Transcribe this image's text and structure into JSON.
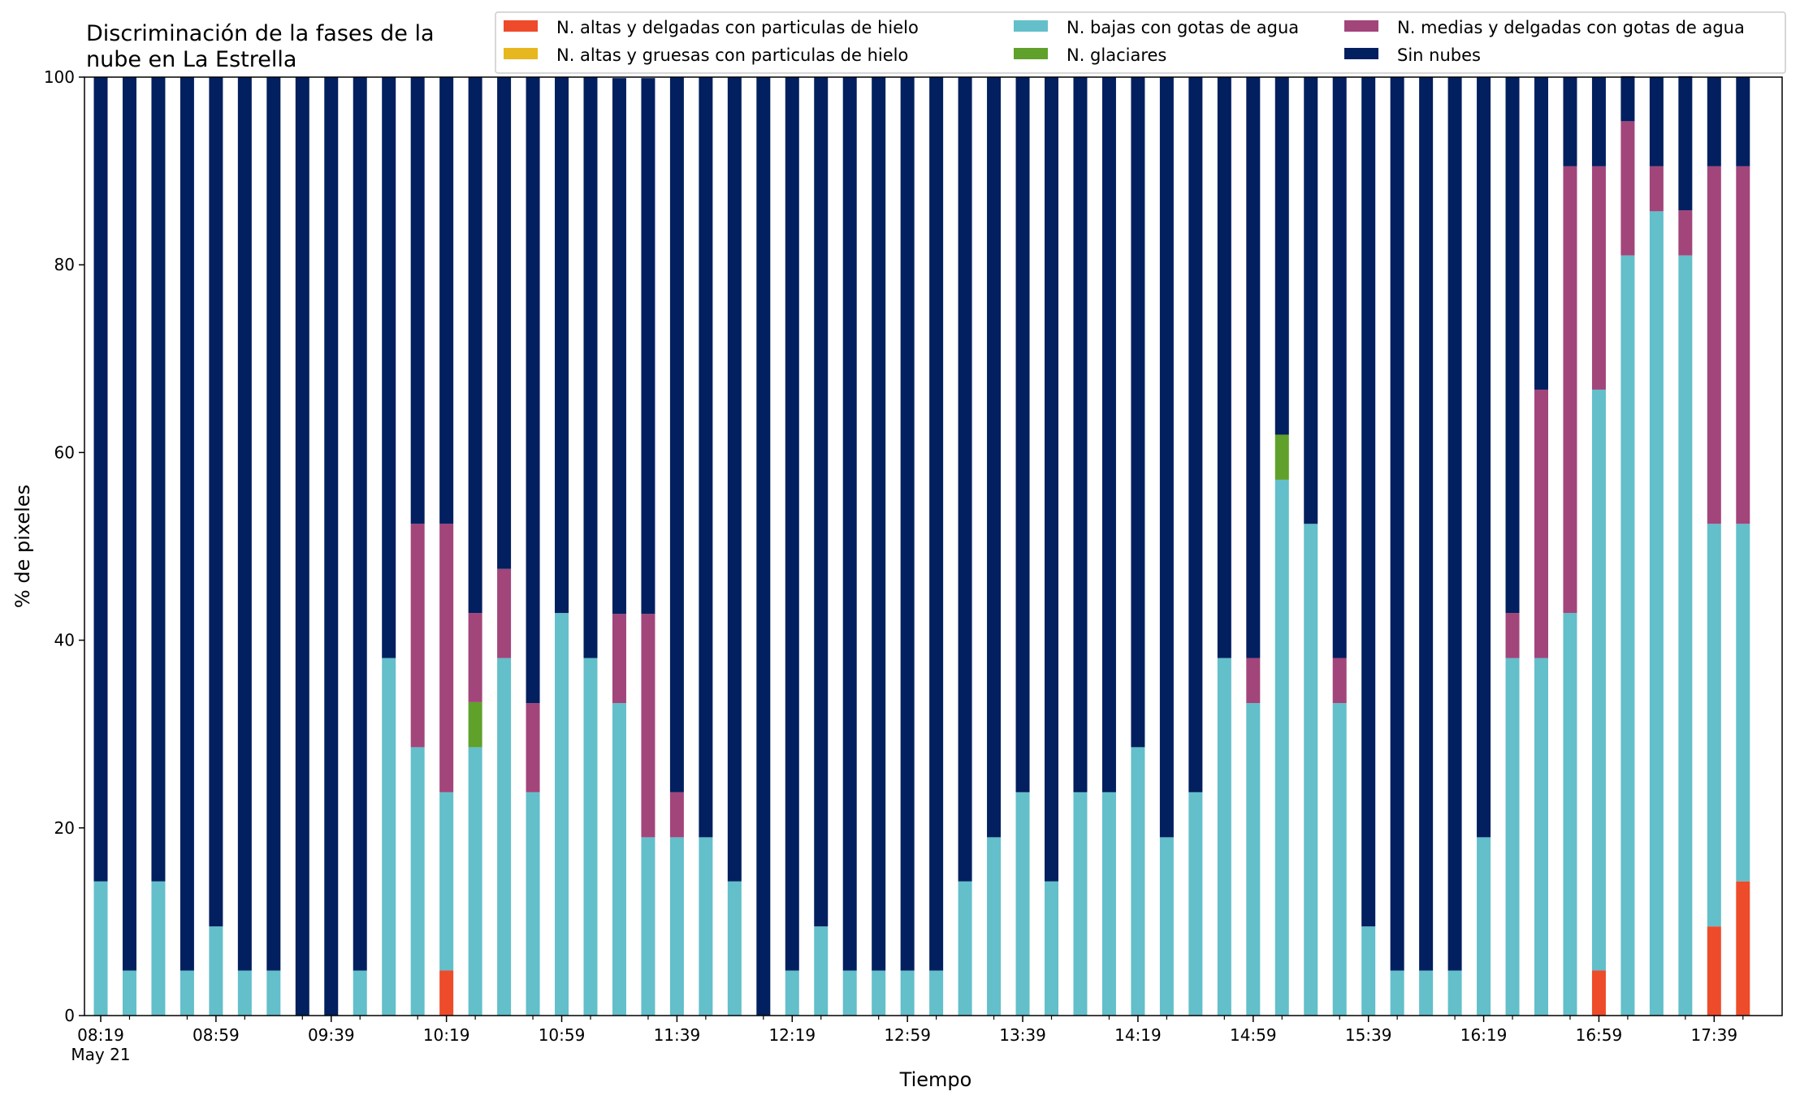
{
  "chart_data": {
    "type": "bar",
    "stacked": true,
    "title_lines": [
      "Discriminación de la fases de la",
      "nube en La Estrella"
    ],
    "xlabel": "Tiempo",
    "ylabel": "% de pixeles",
    "ylim": [
      0,
      100
    ],
    "yticks": [
      0,
      20,
      40,
      60,
      80,
      100
    ],
    "grid": false,
    "legend_position": "top-right",
    "x_tick_labels": [
      {
        "index": 0,
        "label": "08:19",
        "sublabel": "May 21"
      },
      {
        "index": 4,
        "label": "08:59"
      },
      {
        "index": 8,
        "label": "09:39"
      },
      {
        "index": 12,
        "label": "10:19"
      },
      {
        "index": 16,
        "label": "10:59"
      },
      {
        "index": 20,
        "label": "11:39"
      },
      {
        "index": 24,
        "label": "12:19"
      },
      {
        "index": 28,
        "label": "12:59"
      },
      {
        "index": 32,
        "label": "13:39"
      },
      {
        "index": 36,
        "label": "14:19"
      },
      {
        "index": 40,
        "label": "14:59"
      },
      {
        "index": 44,
        "label": "15:39"
      },
      {
        "index": 48,
        "label": "16:19"
      },
      {
        "index": 52,
        "label": "16:59"
      },
      {
        "index": 56,
        "label": "17:39"
      }
    ],
    "series": [
      {
        "name": "N. altas y delgadas con particulas de hielo",
        "color": "#ee4b2b",
        "values": [
          0,
          0,
          0,
          0,
          0,
          0,
          0,
          0,
          0,
          0,
          0,
          0,
          4.8,
          0,
          0,
          0,
          0,
          0,
          0,
          0,
          0,
          0,
          0,
          0,
          0,
          0,
          0,
          0,
          0,
          0,
          0,
          0,
          0,
          0,
          0,
          0,
          0,
          0,
          0,
          0,
          0,
          0,
          0,
          0,
          0,
          0,
          0,
          0,
          0,
          0,
          0,
          0,
          4.8,
          0,
          0,
          0,
          9.5,
          14.3
        ]
      },
      {
        "name": "N. altas y gruesas con particulas de hielo",
        "color": "#e6b71e",
        "values": [
          0,
          0,
          0,
          0,
          0,
          0,
          0,
          0,
          0,
          0,
          0,
          0,
          0,
          0,
          0,
          0,
          0,
          0,
          0,
          0,
          0,
          0,
          0,
          0,
          0,
          0,
          0,
          0,
          0,
          0,
          0,
          0,
          0,
          0,
          0,
          0,
          0,
          0,
          0,
          0,
          0,
          0,
          0,
          0,
          0,
          0,
          0,
          0,
          0,
          0,
          0,
          0,
          0,
          0,
          0,
          0,
          0,
          0
        ]
      },
      {
        "name": "N. bajas con gotas de agua",
        "color": "#63bfca",
        "values": [
          14.3,
          4.8,
          14.3,
          4.8,
          9.5,
          4.8,
          4.8,
          0,
          0,
          4.8,
          38.1,
          28.6,
          19.0,
          28.6,
          38.1,
          23.8,
          42.9,
          38.1,
          33.3,
          19.0,
          19.0,
          19.0,
          14.3,
          0,
          4.8,
          9.5,
          4.8,
          4.8,
          4.8,
          4.8,
          14.3,
          19.0,
          23.8,
          14.3,
          23.8,
          23.8,
          28.6,
          19.0,
          23.8,
          38.1,
          33.3,
          57.1,
          52.4,
          33.3,
          9.5,
          4.8,
          4.8,
          4.8,
          19.0,
          38.1,
          38.1,
          42.9,
          61.9,
          81.0,
          85.7,
          81.0,
          42.9,
          38.1
        ]
      },
      {
        "name": "N. glaciares",
        "color": "#5fa12a",
        "values": [
          0,
          0,
          0,
          0,
          0,
          0,
          0,
          0,
          0,
          0,
          0,
          0,
          0,
          4.8,
          0,
          0,
          0,
          0,
          0,
          0,
          0,
          0,
          0,
          0,
          0,
          0,
          0,
          0,
          0,
          0,
          0,
          0,
          0,
          0,
          0,
          0,
          0,
          0,
          0,
          0,
          0,
          4.8,
          0,
          0,
          0,
          0,
          0,
          0,
          0,
          0,
          0,
          0,
          0,
          0,
          0,
          0,
          0,
          0
        ]
      },
      {
        "name": "N. medias y delgadas con gotas de agua",
        "color": "#a2457b",
        "values": [
          0,
          0,
          0,
          0,
          0,
          0,
          0,
          0,
          0,
          0,
          0,
          23.8,
          28.6,
          9.5,
          9.5,
          9.5,
          0,
          0,
          9.5,
          23.8,
          4.8,
          0,
          0,
          0,
          0,
          0,
          0,
          0,
          0,
          0,
          0,
          0,
          0,
          0,
          0,
          0,
          0,
          0,
          0,
          0,
          4.8,
          0,
          0,
          4.8,
          0,
          0,
          0,
          0,
          0,
          4.8,
          28.6,
          47.6,
          23.8,
          14.3,
          4.8,
          4.8,
          38.1,
          38.1
        ]
      },
      {
        "name": "Sin nubes",
        "color": "#021f5f",
        "values": [
          85.7,
          95.2,
          85.7,
          95.2,
          90.5,
          95.2,
          95.2,
          100,
          100,
          95.2,
          61.9,
          47.6,
          47.6,
          57.1,
          52.4,
          66.7,
          57.1,
          61.9,
          57.1,
          57.1,
          76.2,
          81.0,
          85.7,
          100,
          95.2,
          90.5,
          95.2,
          95.2,
          95.2,
          95.2,
          85.7,
          81.0,
          76.2,
          85.7,
          76.2,
          76.2,
          71.4,
          81.0,
          76.2,
          61.9,
          61.9,
          38.1,
          47.6,
          61.9,
          90.5,
          95.2,
          95.2,
          95.2,
          81.0,
          57.1,
          33.3,
          9.5,
          9.5,
          4.8,
          9.5,
          14.3,
          9.5,
          9.5
        ]
      }
    ]
  }
}
